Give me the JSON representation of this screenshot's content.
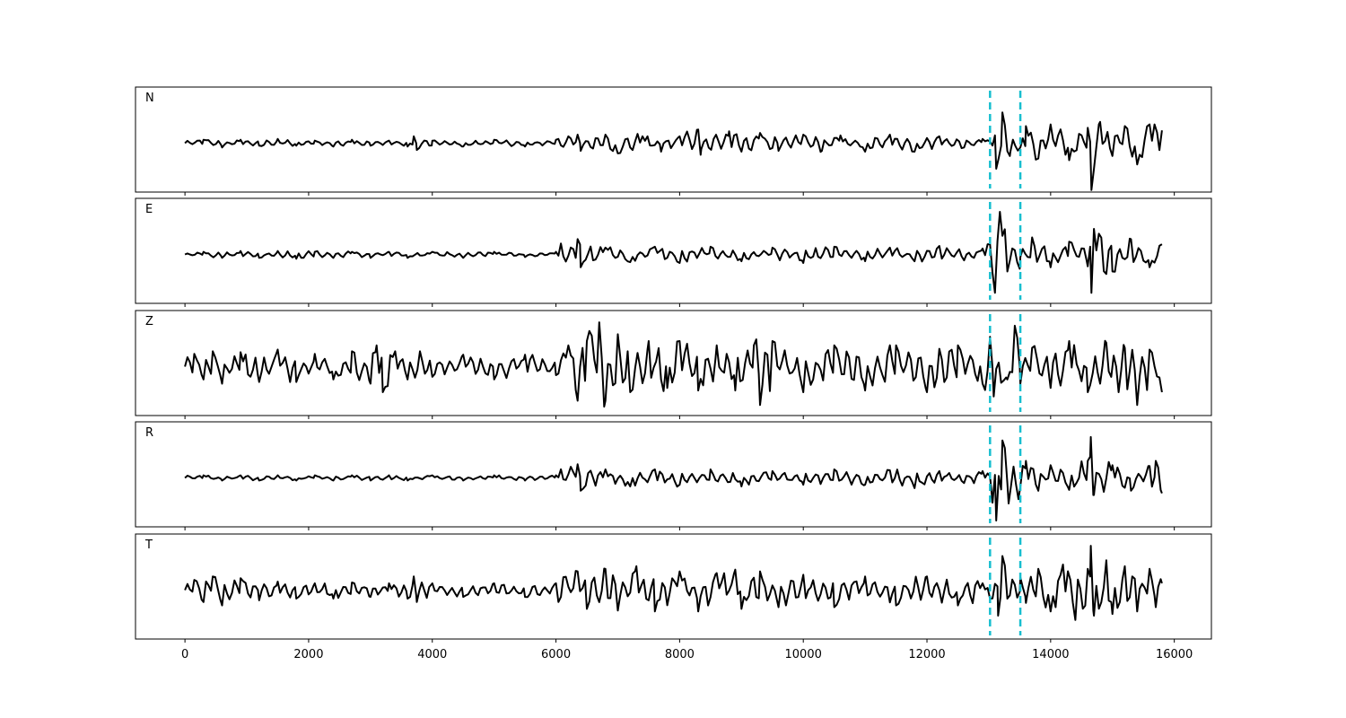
{
  "chart_data": {
    "type": "line",
    "xlim": [
      -800,
      16600
    ],
    "x_ticks": [
      0,
      2000,
      4000,
      6000,
      8000,
      10000,
      12000,
      14000,
      16000
    ],
    "x_tick_labels": [
      "0",
      "2000",
      "4000",
      "6000",
      "8000",
      "10000",
      "12000",
      "14000",
      "16000"
    ],
    "x_range": [
      0,
      15800
    ],
    "markers": [
      13020,
      13510
    ],
    "marker_color": "#17becf",
    "line_color": "#000000",
    "panels": [
      {
        "label": "N",
        "points": [
          [
            0,
            0
          ],
          [
            300,
            4
          ],
          [
            600,
            -5
          ],
          [
            900,
            4
          ],
          [
            1200,
            -3
          ],
          [
            1500,
            5
          ],
          [
            1800,
            -3
          ],
          [
            2100,
            3
          ],
          [
            2400,
            -4
          ],
          [
            2700,
            4
          ],
          [
            3000,
            -3
          ],
          [
            3300,
            3
          ],
          [
            3600,
            -4
          ],
          [
            3700,
            8
          ],
          [
            3750,
            -8
          ],
          [
            4000,
            3
          ],
          [
            4500,
            -4
          ],
          [
            5000,
            4
          ],
          [
            5500,
            -4
          ],
          [
            6000,
            4
          ],
          [
            6350,
            10
          ],
          [
            6400,
            -9
          ],
          [
            6800,
            10
          ],
          [
            7000,
            -12
          ],
          [
            7400,
            8
          ],
          [
            7700,
            -10
          ],
          [
            8000,
            8
          ],
          [
            8300,
            16
          ],
          [
            8350,
            -7
          ],
          [
            8800,
            14
          ],
          [
            9000,
            -10
          ],
          [
            9300,
            12
          ],
          [
            9600,
            -9
          ],
          [
            10000,
            10
          ],
          [
            10300,
            -9
          ],
          [
            10600,
            9
          ],
          [
            11000,
            -10
          ],
          [
            11400,
            10
          ],
          [
            11800,
            -10
          ],
          [
            12200,
            8
          ],
          [
            12600,
            -5
          ],
          [
            12900,
            5
          ],
          [
            13020,
            2
          ],
          [
            13120,
            -30
          ],
          [
            13220,
            36
          ],
          [
            13350,
            -10
          ],
          [
            13510,
            -5
          ],
          [
            13600,
            20
          ],
          [
            13800,
            -18
          ],
          [
            14000,
            22
          ],
          [
            14300,
            -20
          ],
          [
            14600,
            18
          ],
          [
            14660,
            -55
          ],
          [
            14800,
            25
          ],
          [
            15000,
            -15
          ],
          [
            15200,
            20
          ],
          [
            15400,
            -25
          ],
          [
            15600,
            22
          ],
          [
            15800,
            15
          ]
        ]
      },
      {
        "label": "E",
        "points": [
          [
            0,
            0
          ],
          [
            300,
            3
          ],
          [
            600,
            -4
          ],
          [
            900,
            4
          ],
          [
            1200,
            -4
          ],
          [
            1500,
            4
          ],
          [
            1800,
            -5
          ],
          [
            2100,
            3
          ],
          [
            2400,
            -4
          ],
          [
            2700,
            3
          ],
          [
            3000,
            -4
          ],
          [
            3300,
            3
          ],
          [
            3600,
            -4
          ],
          [
            4000,
            3
          ],
          [
            4500,
            -4
          ],
          [
            5000,
            3
          ],
          [
            5500,
            -3
          ],
          [
            6000,
            3
          ],
          [
            6350,
            18
          ],
          [
            6400,
            -15
          ],
          [
            6800,
            8
          ],
          [
            7200,
            -9
          ],
          [
            7600,
            9
          ],
          [
            8000,
            -10
          ],
          [
            8500,
            9
          ],
          [
            9000,
            -8
          ],
          [
            9500,
            8
          ],
          [
            10000,
            -10
          ],
          [
            10500,
            9
          ],
          [
            11000,
            -8
          ],
          [
            11400,
            8
          ],
          [
            11800,
            -8
          ],
          [
            12200,
            10
          ],
          [
            12600,
            -7
          ],
          [
            12900,
            7
          ],
          [
            13020,
            12
          ],
          [
            13100,
            -45
          ],
          [
            13180,
            50
          ],
          [
            13300,
            -20
          ],
          [
            13510,
            -3
          ],
          [
            13700,
            20
          ],
          [
            14000,
            -15
          ],
          [
            14300,
            15
          ],
          [
            14600,
            -14
          ],
          [
            14660,
            -45
          ],
          [
            14700,
            30
          ],
          [
            15000,
            -20
          ],
          [
            15300,
            18
          ],
          [
            15600,
            -15
          ],
          [
            15800,
            12
          ]
        ]
      },
      {
        "label": "Z",
        "points": [
          [
            0,
            0
          ],
          [
            150,
            15
          ],
          [
            300,
            -15
          ],
          [
            450,
            18
          ],
          [
            600,
            -20
          ],
          [
            900,
            17
          ],
          [
            1200,
            -18
          ],
          [
            1500,
            20
          ],
          [
            1800,
            -18
          ],
          [
            2100,
            15
          ],
          [
            2400,
            -15
          ],
          [
            2700,
            18
          ],
          [
            3000,
            -20
          ],
          [
            3100,
            25
          ],
          [
            3200,
            -30
          ],
          [
            3400,
            18
          ],
          [
            3600,
            -15
          ],
          [
            3800,
            18
          ],
          [
            4000,
            -12
          ],
          [
            4500,
            14
          ],
          [
            5000,
            -15
          ],
          [
            5500,
            14
          ],
          [
            6000,
            -10
          ],
          [
            6200,
            25
          ],
          [
            6350,
            -40
          ],
          [
            6500,
            30
          ],
          [
            6700,
            52
          ],
          [
            6800,
            -40
          ],
          [
            7000,
            38
          ],
          [
            7200,
            -30
          ],
          [
            7500,
            30
          ],
          [
            7800,
            -25
          ],
          [
            8000,
            30
          ],
          [
            8300,
            -28
          ],
          [
            8600,
            25
          ],
          [
            8900,
            -28
          ],
          [
            9200,
            25
          ],
          [
            9300,
            -45
          ],
          [
            9500,
            30
          ],
          [
            10000,
            -30
          ],
          [
            10500,
            25
          ],
          [
            11000,
            -28
          ],
          [
            11500,
            25
          ],
          [
            12000,
            -30
          ],
          [
            12500,
            25
          ],
          [
            12900,
            -20
          ],
          [
            13020,
            35
          ],
          [
            13080,
            -35
          ],
          [
            13300,
            -15
          ],
          [
            13420,
            48
          ],
          [
            13510,
            -20
          ],
          [
            13700,
            22
          ],
          [
            14000,
            -25
          ],
          [
            14300,
            30
          ],
          [
            14600,
            -30
          ],
          [
            14900,
            28
          ],
          [
            15100,
            -30
          ],
          [
            15200,
            22
          ],
          [
            15400,
            -45
          ],
          [
            15600,
            20
          ],
          [
            15800,
            -30
          ]
        ]
      },
      {
        "label": "R",
        "points": [
          [
            0,
            0
          ],
          [
            300,
            3
          ],
          [
            600,
            -3
          ],
          [
            900,
            3
          ],
          [
            1200,
            -3
          ],
          [
            1500,
            3
          ],
          [
            1800,
            -3
          ],
          [
            2100,
            3
          ],
          [
            2400,
            -3
          ],
          [
            2700,
            3
          ],
          [
            3000,
            -3
          ],
          [
            3300,
            3
          ],
          [
            3600,
            -3
          ],
          [
            4000,
            3
          ],
          [
            4500,
            -3
          ],
          [
            5000,
            3
          ],
          [
            5500,
            -3
          ],
          [
            6000,
            3
          ],
          [
            6350,
            16
          ],
          [
            6400,
            -15
          ],
          [
            6800,
            10
          ],
          [
            7200,
            -10
          ],
          [
            7600,
            10
          ],
          [
            8000,
            -8
          ],
          [
            8500,
            10
          ],
          [
            9000,
            -10
          ],
          [
            9500,
            8
          ],
          [
            10000,
            -8
          ],
          [
            10500,
            10
          ],
          [
            11000,
            -8
          ],
          [
            11400,
            9
          ],
          [
            11800,
            -12
          ],
          [
            12200,
            8
          ],
          [
            12600,
            -6
          ],
          [
            12900,
            8
          ],
          [
            13020,
            2
          ],
          [
            13120,
            -50
          ],
          [
            13220,
            44
          ],
          [
            13320,
            -30
          ],
          [
            13510,
            -10
          ],
          [
            13600,
            20
          ],
          [
            13800,
            -15
          ],
          [
            14000,
            15
          ],
          [
            14300,
            -14
          ],
          [
            14600,
            20
          ],
          [
            14650,
            48
          ],
          [
            14700,
            -20
          ],
          [
            15000,
            15
          ],
          [
            15300,
            -15
          ],
          [
            15600,
            14
          ],
          [
            15700,
            20
          ],
          [
            15800,
            -18
          ]
        ]
      },
      {
        "label": "T",
        "points": [
          [
            0,
            0
          ],
          [
            150,
            12
          ],
          [
            300,
            -14
          ],
          [
            450,
            16
          ],
          [
            600,
            -18
          ],
          [
            900,
            14
          ],
          [
            1200,
            -12
          ],
          [
            1500,
            10
          ],
          [
            1800,
            -10
          ],
          [
            2100,
            8
          ],
          [
            2400,
            -10
          ],
          [
            2700,
            9
          ],
          [
            3000,
            -8
          ],
          [
            3300,
            8
          ],
          [
            3600,
            -10
          ],
          [
            3700,
            16
          ],
          [
            3750,
            -14
          ],
          [
            4000,
            8
          ],
          [
            4500,
            -8
          ],
          [
            5000,
            8
          ],
          [
            5500,
            -8
          ],
          [
            6000,
            8
          ],
          [
            6350,
            22
          ],
          [
            6500,
            -22
          ],
          [
            6800,
            25
          ],
          [
            7000,
            -24
          ],
          [
            7300,
            28
          ],
          [
            7600,
            -25
          ],
          [
            8000,
            22
          ],
          [
            8300,
            -25
          ],
          [
            8600,
            20
          ],
          [
            8900,
            24
          ],
          [
            9000,
            -22
          ],
          [
            9300,
            22
          ],
          [
            9600,
            -20
          ],
          [
            10000,
            18
          ],
          [
            10500,
            -20
          ],
          [
            11000,
            16
          ],
          [
            11500,
            -18
          ],
          [
            12000,
            16
          ],
          [
            12500,
            -18
          ],
          [
            12900,
            8
          ],
          [
            13020,
            -10
          ],
          [
            13150,
            -30
          ],
          [
            13220,
            40
          ],
          [
            13300,
            -10
          ],
          [
            13510,
            15
          ],
          [
            13600,
            -15
          ],
          [
            13800,
            25
          ],
          [
            14000,
            -25
          ],
          [
            14200,
            30
          ],
          [
            14400,
            -35
          ],
          [
            14600,
            25
          ],
          [
            14650,
            52
          ],
          [
            14700,
            -30
          ],
          [
            14900,
            35
          ],
          [
            15000,
            -28
          ],
          [
            15200,
            28
          ],
          [
            15400,
            -25
          ],
          [
            15600,
            25
          ],
          [
            15700,
            -20
          ],
          [
            15800,
            8
          ]
        ]
      }
    ]
  }
}
